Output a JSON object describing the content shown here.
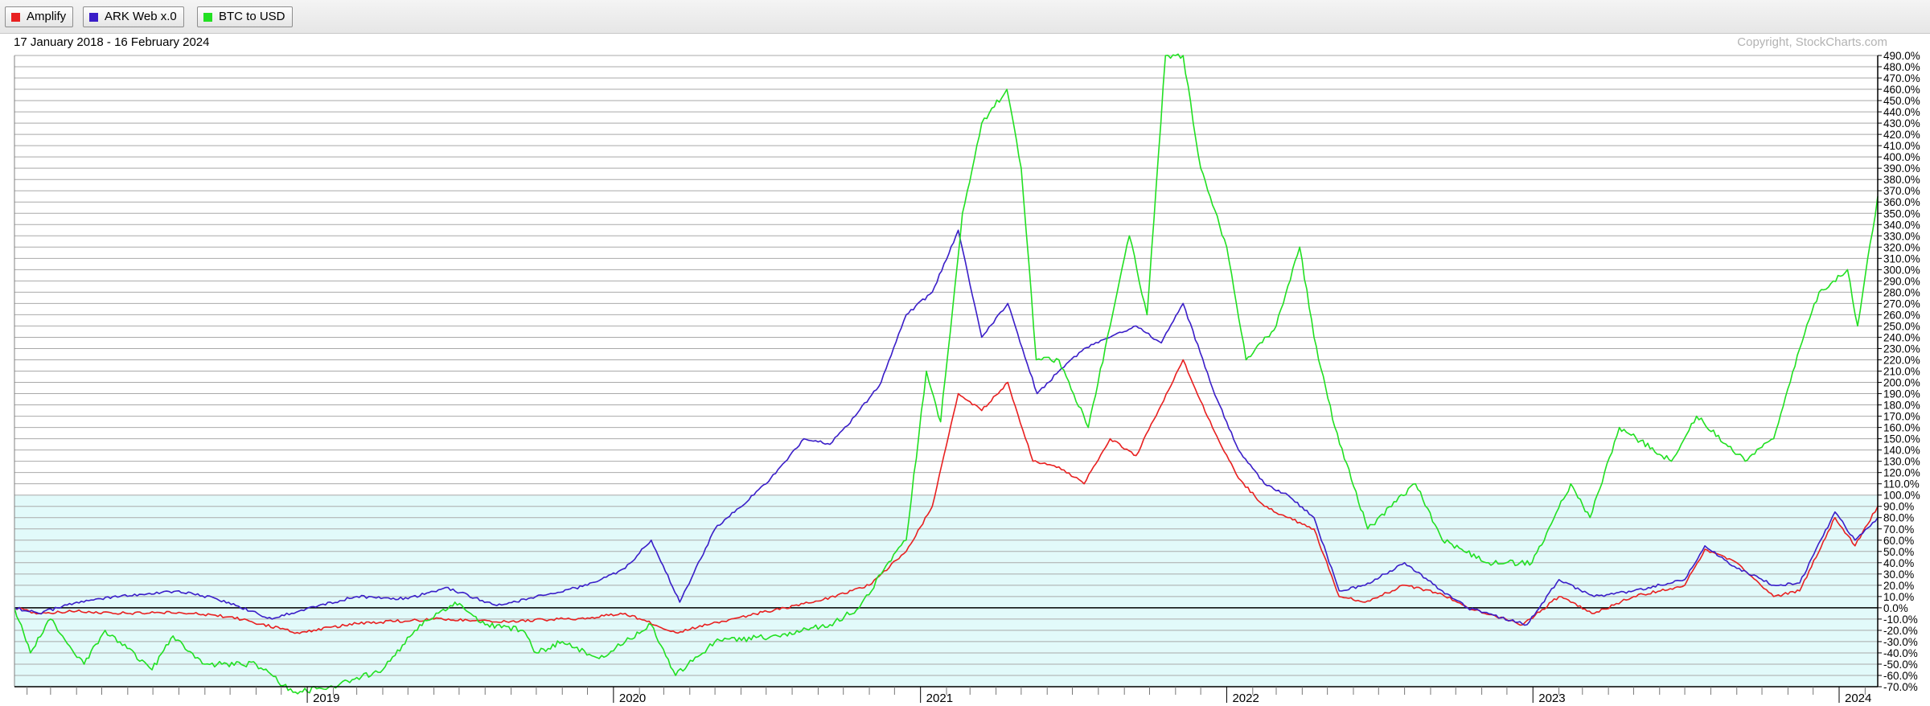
{
  "legend": {
    "items": [
      {
        "label": "Amplify",
        "color": "#e82020"
      },
      {
        "label": "ARK Web x.0",
        "color": "#3a1ec8"
      },
      {
        "label": "BTC to USD",
        "color": "#22e022"
      }
    ]
  },
  "header": {
    "date_range": "17 January 2018 - 16 February 2024",
    "copyright": "Copyright, StockCharts.com"
  },
  "colors": {
    "plot_bg_upper": "#ffffff",
    "plot_bg_lower": "#e2fafa",
    "grid": "#a9a9a9",
    "zero_line": "#000000"
  },
  "chart_data": {
    "type": "line",
    "title": "",
    "xlabel": "",
    "ylabel": "",
    "x_tick_labels": [
      "2019",
      "2020",
      "2021",
      "2022",
      "2023",
      "2024"
    ],
    "y_tick_step": 10,
    "ylim": [
      -70,
      490
    ],
    "y_unit": "%",
    "grid": true,
    "legend_position": "top-left",
    "series": [
      {
        "name": "Amplify",
        "color": "#e82020",
        "points": [
          [
            "2018-01-17",
            0
          ],
          [
            "2018-02-15",
            -5
          ],
          [
            "2018-04-01",
            -3
          ],
          [
            "2018-06-01",
            -5
          ],
          [
            "2018-08-01",
            -4
          ],
          [
            "2018-10-01",
            -8
          ],
          [
            "2018-12-20",
            -22
          ],
          [
            "2019-03-01",
            -14
          ],
          [
            "2019-06-01",
            -10
          ],
          [
            "2019-09-01",
            -12
          ],
          [
            "2019-12-01",
            -9
          ],
          [
            "2020-01-15",
            -5
          ],
          [
            "2020-03-15",
            -22
          ],
          [
            "2020-06-01",
            -8
          ],
          [
            "2020-09-01",
            6
          ],
          [
            "2020-11-01",
            20
          ],
          [
            "2020-12-15",
            50
          ],
          [
            "2021-01-15",
            90
          ],
          [
            "2021-02-15",
            190
          ],
          [
            "2021-03-15",
            175
          ],
          [
            "2021-04-15",
            200
          ],
          [
            "2021-05-15",
            130
          ],
          [
            "2021-06-15",
            125
          ],
          [
            "2021-07-15",
            110
          ],
          [
            "2021-08-15",
            150
          ],
          [
            "2021-09-15",
            135
          ],
          [
            "2021-10-15",
            180
          ],
          [
            "2021-11-10",
            220
          ],
          [
            "2021-12-15",
            160
          ],
          [
            "2022-01-15",
            115
          ],
          [
            "2022-02-15",
            90
          ],
          [
            "2022-03-15",
            80
          ],
          [
            "2022-04-15",
            70
          ],
          [
            "2022-05-15",
            10
          ],
          [
            "2022-06-15",
            5
          ],
          [
            "2022-08-01",
            20
          ],
          [
            "2022-09-15",
            12
          ],
          [
            "2022-10-15",
            0
          ],
          [
            "2022-12-20",
            -15
          ],
          [
            "2023-02-01",
            10
          ],
          [
            "2023-03-15",
            -5
          ],
          [
            "2023-05-01",
            10
          ],
          [
            "2023-07-01",
            20
          ],
          [
            "2023-07-25",
            52
          ],
          [
            "2023-09-01",
            40
          ],
          [
            "2023-10-15",
            10
          ],
          [
            "2023-11-15",
            15
          ],
          [
            "2023-12-27",
            80
          ],
          [
            "2024-01-20",
            55
          ],
          [
            "2024-02-16",
            90
          ]
        ]
      },
      {
        "name": "ARK Web x.0",
        "color": "#3a1ec8",
        "points": [
          [
            "2018-01-17",
            0
          ],
          [
            "2018-02-15",
            -5
          ],
          [
            "2018-04-01",
            5
          ],
          [
            "2018-06-15",
            12
          ],
          [
            "2018-08-01",
            15
          ],
          [
            "2018-09-15",
            8
          ],
          [
            "2018-11-20",
            -10
          ],
          [
            "2018-12-25",
            -2
          ],
          [
            "2019-03-01",
            10
          ],
          [
            "2019-05-01",
            8
          ],
          [
            "2019-06-15",
            18
          ],
          [
            "2019-08-15",
            2
          ],
          [
            "2019-10-15",
            12
          ],
          [
            "2019-12-01",
            20
          ],
          [
            "2020-01-15",
            35
          ],
          [
            "2020-02-15",
            60
          ],
          [
            "2020-03-20",
            5
          ],
          [
            "2020-05-01",
            70
          ],
          [
            "2020-07-01",
            110
          ],
          [
            "2020-08-15",
            150
          ],
          [
            "2020-09-15",
            145
          ],
          [
            "2020-10-15",
            170
          ],
          [
            "2020-11-15",
            200
          ],
          [
            "2020-12-15",
            260
          ],
          [
            "2021-01-15",
            280
          ],
          [
            "2021-02-15",
            335
          ],
          [
            "2021-03-15",
            240
          ],
          [
            "2021-04-15",
            270
          ],
          [
            "2021-05-20",
            190
          ],
          [
            "2021-06-15",
            210
          ],
          [
            "2021-07-15",
            230
          ],
          [
            "2021-08-15",
            240
          ],
          [
            "2021-09-15",
            250
          ],
          [
            "2021-10-15",
            235
          ],
          [
            "2021-11-10",
            270
          ],
          [
            "2021-12-15",
            195
          ],
          [
            "2022-01-15",
            140
          ],
          [
            "2022-02-15",
            110
          ],
          [
            "2022-03-15",
            100
          ],
          [
            "2022-04-15",
            80
          ],
          [
            "2022-05-15",
            15
          ],
          [
            "2022-06-15",
            20
          ],
          [
            "2022-08-01",
            40
          ],
          [
            "2022-09-15",
            15
          ],
          [
            "2022-10-15",
            0
          ],
          [
            "2022-12-25",
            -15
          ],
          [
            "2023-02-01",
            25
          ],
          [
            "2023-03-15",
            10
          ],
          [
            "2023-05-01",
            15
          ],
          [
            "2023-07-01",
            25
          ],
          [
            "2023-07-25",
            55
          ],
          [
            "2023-09-01",
            35
          ],
          [
            "2023-10-15",
            20
          ],
          [
            "2023-11-15",
            22
          ],
          [
            "2023-12-27",
            85
          ],
          [
            "2024-01-20",
            60
          ],
          [
            "2024-02-16",
            80
          ]
        ]
      },
      {
        "name": "BTC to USD",
        "color": "#22e022",
        "points": [
          [
            "2018-01-17",
            0
          ],
          [
            "2018-02-05",
            -40
          ],
          [
            "2018-03-01",
            -10
          ],
          [
            "2018-04-10",
            -50
          ],
          [
            "2018-05-05",
            -20
          ],
          [
            "2018-06-30",
            -55
          ],
          [
            "2018-07-25",
            -25
          ],
          [
            "2018-09-01",
            -50
          ],
          [
            "2018-11-01",
            -50
          ],
          [
            "2018-12-15",
            -75
          ],
          [
            "2019-02-01",
            -70
          ],
          [
            "2019-04-01",
            -55
          ],
          [
            "2019-05-15",
            -15
          ],
          [
            "2019-06-26",
            5
          ],
          [
            "2019-08-01",
            -15
          ],
          [
            "2019-09-15",
            -20
          ],
          [
            "2019-10-01",
            -40
          ],
          [
            "2019-11-01",
            -30
          ],
          [
            "2019-12-15",
            -45
          ],
          [
            "2020-02-15",
            -15
          ],
          [
            "2020-03-15",
            -60
          ],
          [
            "2020-05-01",
            -30
          ],
          [
            "2020-07-15",
            -25
          ],
          [
            "2020-09-15",
            -15
          ],
          [
            "2020-10-20",
            0
          ],
          [
            "2020-11-15",
            30
          ],
          [
            "2020-12-15",
            60
          ],
          [
            "2021-01-08",
            210
          ],
          [
            "2021-01-25",
            165
          ],
          [
            "2021-02-20",
            350
          ],
          [
            "2021-03-15",
            430
          ],
          [
            "2021-04-14",
            460
          ],
          [
            "2021-05-01",
            390
          ],
          [
            "2021-05-19",
            220
          ],
          [
            "2021-06-15",
            220
          ],
          [
            "2021-07-20",
            160
          ],
          [
            "2021-08-15",
            250
          ],
          [
            "2021-09-07",
            330
          ],
          [
            "2021-09-28",
            260
          ],
          [
            "2021-10-20",
            490
          ],
          [
            "2021-11-10",
            490
          ],
          [
            "2021-12-01",
            390
          ],
          [
            "2022-01-01",
            320
          ],
          [
            "2022-01-24",
            220
          ],
          [
            "2022-03-01",
            250
          ],
          [
            "2022-03-29",
            320
          ],
          [
            "2022-04-15",
            240
          ],
          [
            "2022-05-10",
            160
          ],
          [
            "2022-06-18",
            70
          ],
          [
            "2022-08-14",
            110
          ],
          [
            "2022-09-15",
            60
          ],
          [
            "2022-11-09",
            40
          ],
          [
            "2022-12-31",
            40
          ],
          [
            "2023-02-15",
            110
          ],
          [
            "2023-03-10",
            80
          ],
          [
            "2023-04-14",
            160
          ],
          [
            "2023-06-15",
            130
          ],
          [
            "2023-07-15",
            170
          ],
          [
            "2023-09-11",
            130
          ],
          [
            "2023-10-15",
            150
          ],
          [
            "2023-11-15",
            230
          ],
          [
            "2023-12-08",
            280
          ],
          [
            "2024-01-11",
            300
          ],
          [
            "2024-01-23",
            250
          ],
          [
            "2024-02-16",
            365
          ]
        ]
      }
    ]
  }
}
